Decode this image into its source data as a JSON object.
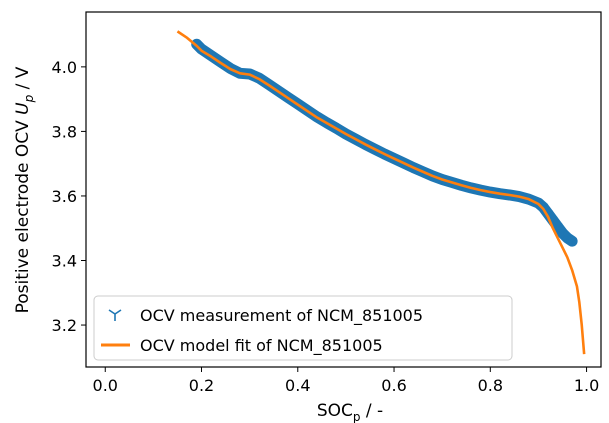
{
  "chart_data": {
    "type": "line",
    "xlabel": {
      "main": "SOC",
      "sub": "p",
      "unit": " /  -"
    },
    "ylabel": {
      "main": "Positive electrode OCV ",
      "var": "U",
      "sub": "p",
      "unit": "  /  V"
    },
    "xlim": [
      -0.04,
      1.03
    ],
    "ylim": [
      3.07,
      4.17
    ],
    "x_ticks": [
      0.0,
      0.2,
      0.4,
      0.6,
      0.8,
      1.0
    ],
    "x_tick_labels": [
      "0.0",
      "0.2",
      "0.4",
      "0.6",
      "0.8",
      "1.0"
    ],
    "y_ticks": [
      3.2,
      3.4,
      3.6,
      3.8,
      4.0
    ],
    "y_tick_labels": [
      "3.2",
      "3.4",
      "3.6",
      "3.8",
      "4.0"
    ],
    "grid": false,
    "legend_position": "lower-left",
    "series": [
      {
        "name": "OCV measurement of NCM_851005",
        "kind": "measurement",
        "marker": "tri_down",
        "color": "#1f77b4",
        "x": [
          0.19,
          0.2,
          0.22,
          0.24,
          0.26,
          0.28,
          0.3,
          0.32,
          0.34,
          0.36,
          0.38,
          0.4,
          0.42,
          0.44,
          0.46,
          0.48,
          0.5,
          0.52,
          0.54,
          0.56,
          0.58,
          0.6,
          0.62,
          0.64,
          0.66,
          0.68,
          0.7,
          0.72,
          0.74,
          0.76,
          0.78,
          0.8,
          0.82,
          0.84,
          0.86,
          0.88,
          0.9,
          0.91,
          0.92,
          0.93,
          0.94,
          0.95,
          0.96,
          0.97
        ],
        "y": [
          4.07,
          4.055,
          4.035,
          4.015,
          3.995,
          3.98,
          3.978,
          3.965,
          3.945,
          3.925,
          3.905,
          3.885,
          3.865,
          3.845,
          3.827,
          3.81,
          3.792,
          3.776,
          3.76,
          3.745,
          3.73,
          3.716,
          3.702,
          3.688,
          3.675,
          3.662,
          3.651,
          3.642,
          3.633,
          3.625,
          3.618,
          3.612,
          3.607,
          3.603,
          3.598,
          3.59,
          3.578,
          3.565,
          3.545,
          3.525,
          3.505,
          3.485,
          3.47,
          3.46
        ]
      },
      {
        "name": "OCV model fit of NCM_851005",
        "kind": "fit",
        "color": "#ff7f0e",
        "x": [
          0.15,
          0.17,
          0.19,
          0.2,
          0.22,
          0.24,
          0.26,
          0.28,
          0.3,
          0.32,
          0.34,
          0.36,
          0.38,
          0.4,
          0.42,
          0.44,
          0.46,
          0.48,
          0.5,
          0.52,
          0.54,
          0.56,
          0.58,
          0.6,
          0.62,
          0.64,
          0.66,
          0.68,
          0.7,
          0.72,
          0.74,
          0.76,
          0.78,
          0.8,
          0.82,
          0.84,
          0.86,
          0.88,
          0.9,
          0.91,
          0.92,
          0.93,
          0.94,
          0.95,
          0.96,
          0.97,
          0.98,
          0.985,
          0.99,
          0.995
        ],
        "y": [
          4.11,
          4.09,
          4.065,
          4.05,
          4.032,
          4.012,
          3.993,
          3.98,
          3.976,
          3.962,
          3.943,
          3.923,
          3.903,
          3.883,
          3.863,
          3.843,
          3.826,
          3.809,
          3.792,
          3.776,
          3.76,
          3.745,
          3.73,
          3.716,
          3.702,
          3.688,
          3.675,
          3.662,
          3.651,
          3.642,
          3.633,
          3.625,
          3.618,
          3.612,
          3.607,
          3.603,
          3.598,
          3.59,
          3.575,
          3.56,
          3.535,
          3.5,
          3.47,
          3.44,
          3.41,
          3.37,
          3.32,
          3.27,
          3.2,
          3.11
        ]
      }
    ]
  }
}
